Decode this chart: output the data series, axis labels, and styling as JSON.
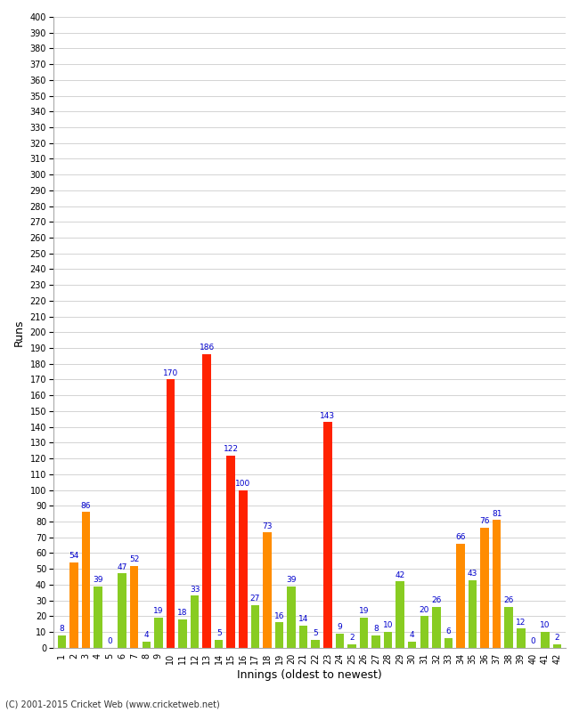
{
  "title": "",
  "xlabel": "Innings (oldest to newest)",
  "ylabel": "Runs",
  "footer": "(C) 2001-2015 Cricket Web (www.cricketweb.net)",
  "ylim": [
    0,
    400
  ],
  "innings": [
    1,
    2,
    3,
    4,
    5,
    6,
    7,
    8,
    9,
    10,
    11,
    12,
    13,
    14,
    15,
    16,
    17,
    18,
    19,
    20,
    21,
    22,
    23,
    24,
    25,
    26,
    27,
    28,
    29,
    30,
    31,
    32,
    33,
    34,
    35,
    36,
    37,
    38,
    39,
    40,
    41,
    42
  ],
  "scores": [
    8,
    54,
    86,
    39,
    0,
    47,
    52,
    4,
    19,
    170,
    18,
    33,
    186,
    5,
    122,
    100,
    27,
    73,
    16,
    39,
    14,
    5,
    143,
    9,
    2,
    19,
    8,
    10,
    42,
    4,
    20,
    26,
    6,
    66,
    43,
    76,
    81,
    26,
    12,
    0,
    10,
    2
  ],
  "background_color": "#ffffff",
  "grid_color": "#cccccc",
  "label_color": "#0000cc",
  "label_fontsize": 6.5,
  "tick_fontsize": 7,
  "axis_label_fontsize": 9
}
